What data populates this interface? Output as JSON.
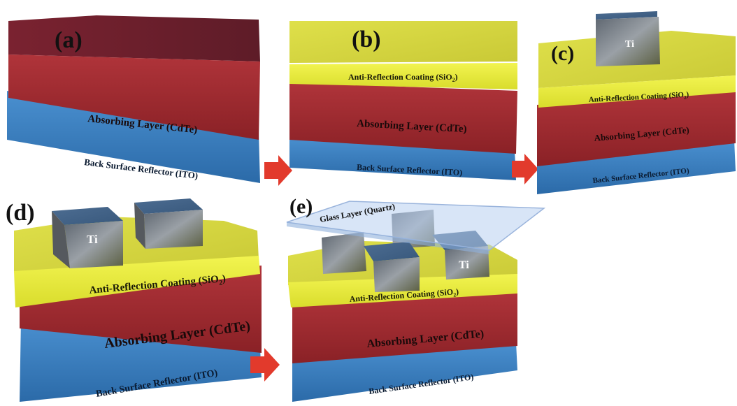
{
  "figure": {
    "panels": [
      {
        "letter": "(a)",
        "layers": {
          "absorbing": "Absorbing Layer (CdTe)",
          "reflector": "Back Surface Reflector (ITO)"
        }
      },
      {
        "letter": "(b)",
        "layers": {
          "coating": "Anti-Reflection Coating (SiO",
          "coating_sub": "2",
          "coating_end": ")",
          "absorbing": "Absorbing Layer (CdTe)",
          "reflector": "Back Surface Reflector (ITO)"
        }
      },
      {
        "letter": "(c)",
        "contact": "Ti",
        "layers": {
          "coating": "Anti-Reflection Coating (SiO",
          "coating_sub": "2",
          "coating_end": ")",
          "absorbing": "Absorbing Layer (CdTe)",
          "reflector": "Back Surface Reflector (ITO)"
        }
      },
      {
        "letter": "(d)",
        "contact": "Ti",
        "layers": {
          "coating": "Anti-Reflection Coating (SiO",
          "coating_sub": "2",
          "coating_end": ")",
          "absorbing": "Absorbing Layer (CdTe)",
          "reflector": "Back Surface Reflector (ITO)"
        }
      },
      {
        "letter": "(e)",
        "contact": "Ti",
        "glass": "Glass Layer (Quartz)",
        "layers": {
          "coating": "Anti-Reflection Coating (SiO",
          "coating_sub": "2",
          "coating_end": ")",
          "absorbing": "Absorbing Layer (CdTe)",
          "reflector": "Back Surface Reflector (ITO)"
        }
      }
    ],
    "colors": {
      "absorbing": "#9c2a2a",
      "absorbing_dark": "#6e1a1f",
      "reflector": "#3a7fc0",
      "reflector_dark": "#23578e",
      "coating": "#e6ea3a",
      "coating_dark": "#b5b820",
      "arrow": "#e23a2c",
      "ti": "#7a8088"
    }
  }
}
